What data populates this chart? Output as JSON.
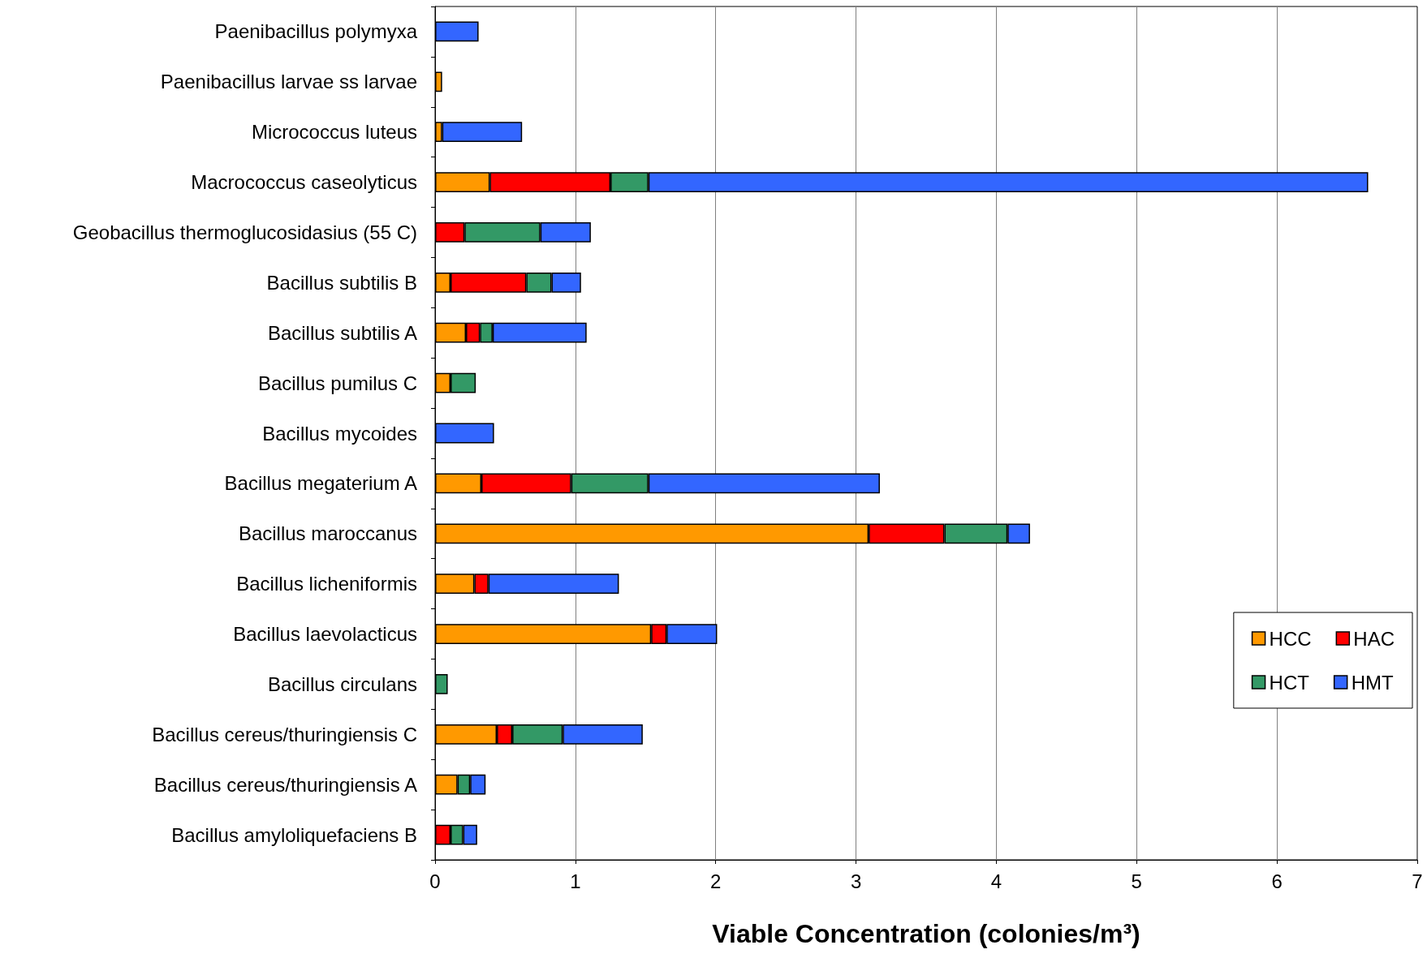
{
  "chart_data": {
    "type": "bar",
    "orientation": "horizontal",
    "stacked": true,
    "xlabel": "Viable Concentration (colonies/m³)",
    "categories": [
      "Paenibacillus polymyxa",
      "Paenibacillus larvae ss larvae",
      "Micrococcus luteus",
      "Macrococcus caseolyticus",
      "Geobacillus thermoglucosidasius (55 C)",
      "Bacillus subtilis B",
      "Bacillus subtilis A",
      "Bacillus pumilus C",
      "Bacillus mycoides",
      "Bacillus megaterium A",
      "Bacillus maroccanus",
      "Bacillus licheniformis",
      "Bacillus laevolacticus",
      "Bacillus circulans",
      "Bacillus cereus/thuringiensis C",
      "Bacillus cereus/thuringiensis A",
      "Bacillus amyloliquefaciens B"
    ],
    "series": [
      {
        "name": "HCC",
        "color": "#ff9900",
        "values": [
          null,
          0.05,
          0.05,
          0.39,
          null,
          0.11,
          0.22,
          0.11,
          null,
          0.33,
          3.09,
          0.28,
          1.54,
          null,
          0.44,
          0.16,
          null
        ]
      },
      {
        "name": "HAC",
        "color": "#ff0000",
        "values": [
          null,
          null,
          null,
          0.86,
          0.21,
          0.54,
          0.1,
          null,
          null,
          0.64,
          0.54,
          0.1,
          0.11,
          null,
          0.11,
          null,
          0.11
        ]
      },
      {
        "name": "HCT",
        "color": "#339966",
        "values": [
          null,
          null,
          null,
          0.27,
          0.54,
          0.18,
          0.09,
          0.18,
          null,
          0.55,
          0.45,
          null,
          null,
          0.09,
          0.36,
          0.09,
          0.09
        ]
      },
      {
        "name": "HMT",
        "color": "#3366ff",
        "values": [
          0.31,
          null,
          0.57,
          5.13,
          0.36,
          0.21,
          0.67,
          null,
          0.42,
          1.65,
          0.16,
          0.93,
          0.36,
          null,
          0.57,
          0.11,
          0.1
        ]
      }
    ],
    "xlim": [
      0,
      7
    ],
    "xticks": [
      0,
      1,
      2,
      3,
      4,
      5,
      6,
      7
    ],
    "grid": "x",
    "legend": "lower right"
  }
}
